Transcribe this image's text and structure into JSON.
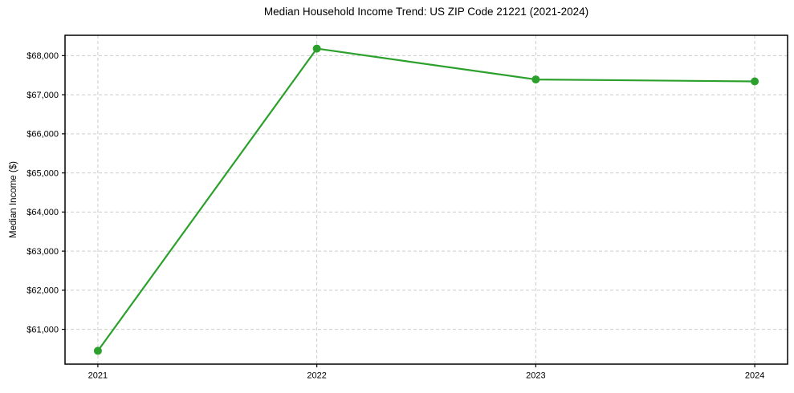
{
  "chart_data": {
    "type": "line",
    "title": "Median Household Income Trend: US ZIP Code 21221 (2021-2024)",
    "xlabel": "",
    "ylabel": "Median Income ($)",
    "x": [
      2021,
      2022,
      2023,
      2024
    ],
    "x_tick_labels": [
      "2021",
      "2022",
      "2023",
      "2024"
    ],
    "series": [
      {
        "values": [
          60450,
          68180,
          67390,
          67340
        ]
      }
    ],
    "yticks": [
      61000,
      62000,
      63000,
      64000,
      65000,
      66000,
      67000,
      68000
    ],
    "y_tick_labels": [
      "$61,000",
      "$62,000",
      "$63,000",
      "$64,000",
      "$65,000",
      "$66,000",
      "$67,000",
      "$68,000"
    ],
    "xlim": [
      2020.85,
      2024.15
    ],
    "ylim": [
      60110,
      68520
    ],
    "grid": true,
    "legend_position": "none",
    "line_color": "#2ca02c",
    "marker": "circle",
    "grid_color": "#cccccc",
    "spine_color": "#000000"
  }
}
